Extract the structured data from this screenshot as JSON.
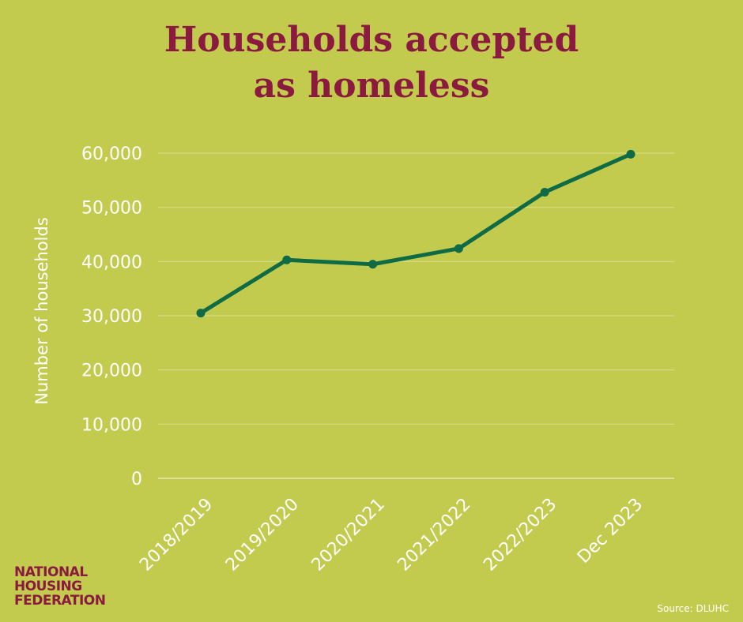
{
  "header": {
    "title_line1": "Households accepted",
    "title_line2": "as homeless"
  },
  "chart_data": {
    "type": "line",
    "title": "Households accepted as homeless",
    "ylabel": "Number of households",
    "xlabel": "",
    "categories": [
      "2018/2019",
      "2019/2020",
      "2020/2021",
      "2021/2022",
      "2022/2023",
      "Dec 2023"
    ],
    "series": [
      {
        "values": [
          30500,
          40300,
          39500,
          42400,
          52800,
          59800
        ]
      }
    ],
    "ylim": [
      0,
      60000
    ],
    "yticks": [
      0,
      10000,
      20000,
      30000,
      40000,
      50000,
      60000
    ],
    "ytick_labels": [
      "0",
      "10,000",
      "20,000",
      "30,000",
      "40,000",
      "50,000",
      "60,000"
    ],
    "grid": true,
    "colors": {
      "line": "#0e6b45",
      "grid": "#d9df8e",
      "text": "#ffffff"
    }
  },
  "footer": {
    "logo_line1": "NATIONAL",
    "logo_line2": "HOUSING",
    "logo_line3": "FEDERATION",
    "source": "Source: DLUHC"
  }
}
